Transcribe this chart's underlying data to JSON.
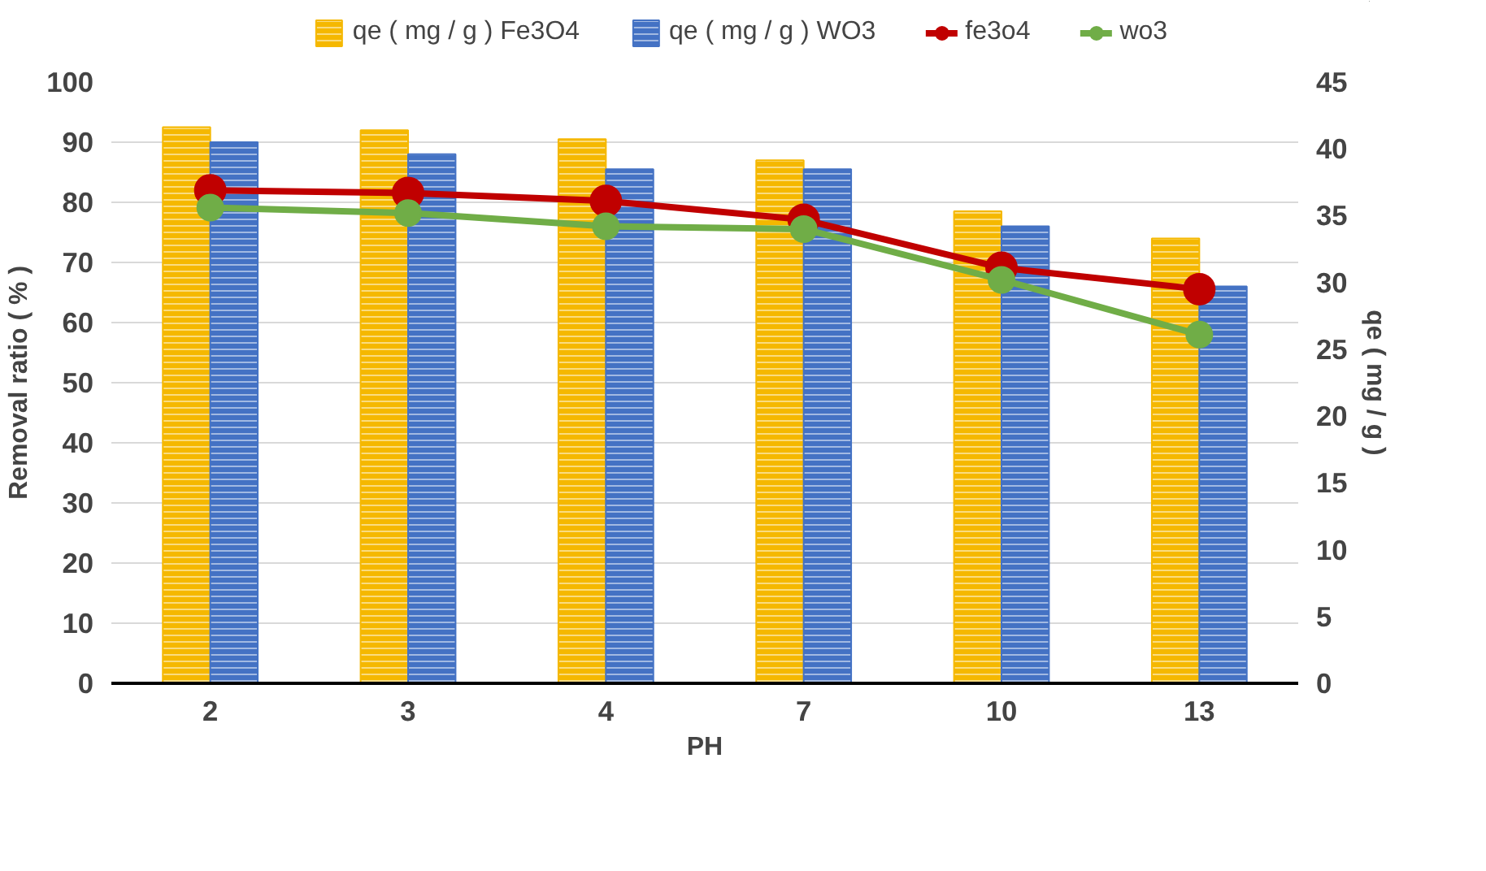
{
  "chart_data": {
    "type": "bar",
    "xlabel": "PH",
    "ylabel": "Removal ratio ( % )",
    "y2label": "qe ( mg / g )",
    "categories": [
      "2",
      "3",
      "4",
      "7",
      "10",
      "13"
    ],
    "series": [
      {
        "name": "qe ( mg / g ) Fe3O4",
        "color": "#f5b800",
        "values": [
          92.5,
          92,
          90.5,
          87,
          78.5,
          74
        ]
      },
      {
        "name": "qe ( mg / g ) WO3",
        "color": "#4472c4",
        "values": [
          90,
          88,
          85.5,
          85.5,
          76,
          66
        ]
      },
      {
        "name": "fe3o4",
        "type": "line",
        "axis": "y2",
        "color": "#c00000",
        "values": [
          36.9,
          36.7,
          36.1,
          34.7,
          31.1,
          29.5
        ]
      },
      {
        "name": "wo3",
        "type": "line",
        "axis": "y2",
        "color": "#70ad47",
        "values": [
          35.6,
          35.2,
          34.2,
          34.0,
          30.2,
          26.1
        ]
      }
    ],
    "ylim": [
      0,
      100
    ],
    "yticks": [
      0,
      10,
      20,
      30,
      40,
      50,
      60,
      70,
      80,
      90,
      100
    ],
    "y2lim": [
      0,
      45
    ],
    "y2ticks": [
      0,
      5,
      10,
      15,
      20,
      25,
      30,
      35,
      40,
      45
    ],
    "grid": "y",
    "legend": "top",
    "marker": "circle"
  }
}
